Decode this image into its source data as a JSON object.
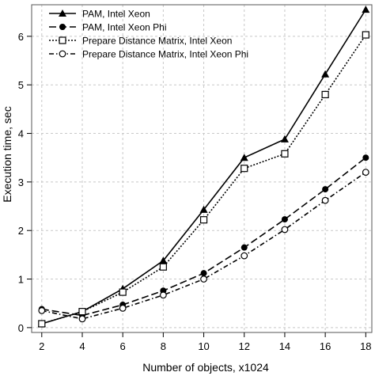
{
  "chart_data": {
    "type": "line",
    "title": "",
    "xlabel": "Number of objects, x1024",
    "ylabel": "Execution time, sec",
    "x": [
      2,
      4,
      6,
      8,
      10,
      12,
      14,
      16,
      18
    ],
    "xlim": [
      1.5,
      18.3
    ],
    "ylim": [
      -0.1,
      6.65
    ],
    "xticks": [
      2,
      4,
      6,
      8,
      10,
      12,
      14,
      16,
      18
    ],
    "yticks": [
      0,
      1,
      2,
      3,
      4,
      5,
      6
    ],
    "grid": true,
    "legend_position": "top-left",
    "series": [
      {
        "name": "PAM, Intel Xeon",
        "marker": "triangle",
        "dash": "solid",
        "values": [
          0.08,
          0.33,
          0.8,
          1.38,
          2.43,
          3.5,
          3.88,
          5.22,
          6.55
        ]
      },
      {
        "name": "PAM, Intel Xeon Phi",
        "marker": "filled-circle",
        "dash": "longdash",
        "values": [
          0.38,
          0.25,
          0.47,
          0.76,
          1.12,
          1.65,
          2.23,
          2.85,
          3.5
        ]
      },
      {
        "name": "Prepare Distance Matrix, Intel Xeon",
        "marker": "open-square",
        "dash": "dotted",
        "values": [
          0.08,
          0.33,
          0.73,
          1.25,
          2.22,
          3.28,
          3.58,
          4.8,
          6.03
        ]
      },
      {
        "name": "Prepare Distance Matrix, Intel Xeon Phi",
        "marker": "open-circle",
        "dash": "dotdash",
        "values": [
          0.35,
          0.18,
          0.4,
          0.67,
          1.0,
          1.48,
          2.02,
          2.62,
          3.2
        ]
      }
    ]
  },
  "colors": {
    "line": "#000000",
    "grid": "#c8c8c8",
    "frame": "#555555",
    "background": "#ffffff"
  }
}
